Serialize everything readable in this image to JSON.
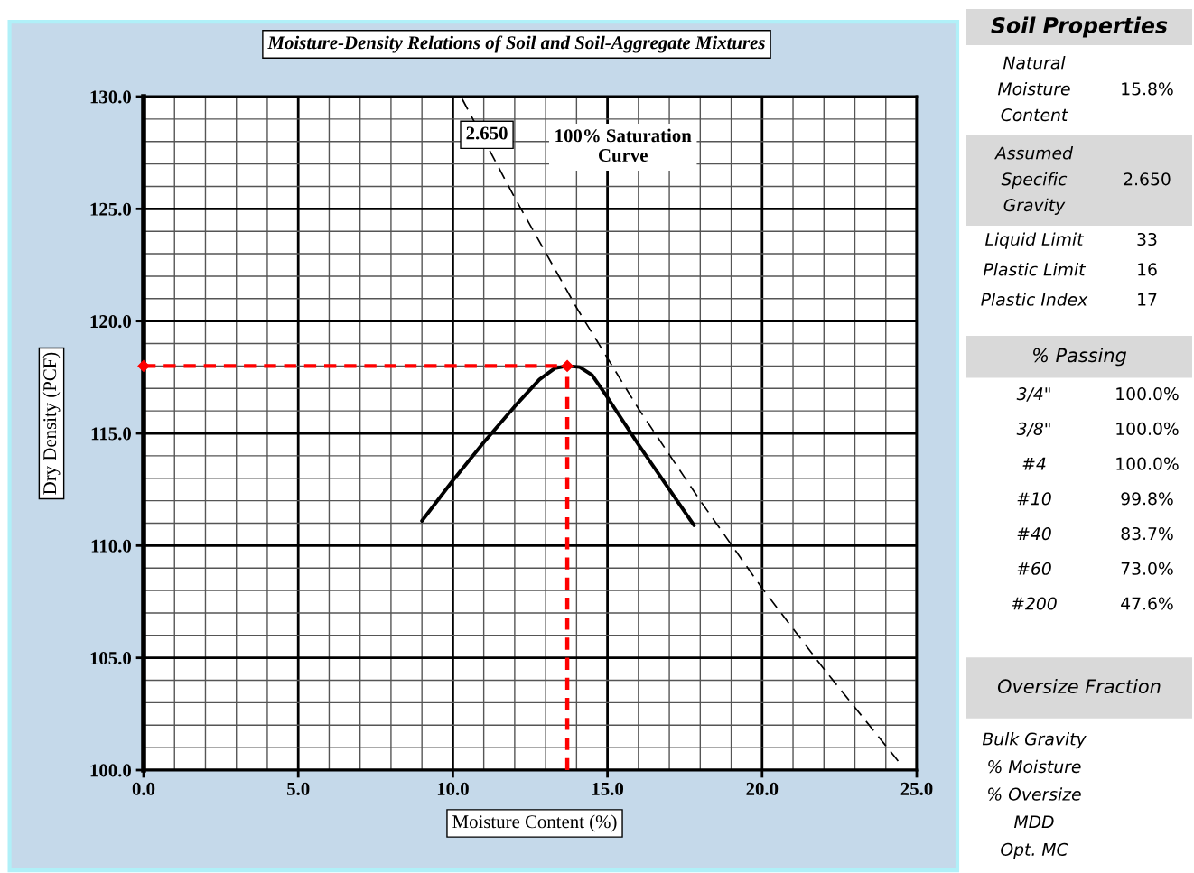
{
  "chart_data": [
    {
      "type": "line",
      "title": "Moisture-Density Relations of Soil and Soil-Aggregate Mixtures",
      "xlabel": "Moisture Content (%)",
      "ylabel": "Dry Density (PCF)",
      "xlim": [
        0,
        25
      ],
      "ylim": [
        100,
        130
      ],
      "xticks": [
        {
          "value": 0,
          "label": "0.0"
        },
        {
          "value": 5,
          "label": "5.0"
        },
        {
          "value": 10,
          "label": "10.0"
        },
        {
          "value": 15,
          "label": "15.0"
        },
        {
          "value": 20,
          "label": "20.0"
        },
        {
          "value": 25,
          "label": "25.0"
        }
      ],
      "yticks": [
        {
          "value": 100,
          "label": "100.0"
        },
        {
          "value": 105,
          "label": "105.0"
        },
        {
          "value": 110,
          "label": "110.0"
        },
        {
          "value": 115,
          "label": "115.0"
        },
        {
          "value": 120,
          "label": "120.0"
        },
        {
          "value": 125,
          "label": "125.0"
        },
        {
          "value": 130,
          "label": "130.0"
        }
      ],
      "grid": true,
      "series": [
        {
          "color": "#000000",
          "line_style": "solid",
          "marker": "none",
          "x": [
            9.0,
            10.0,
            11.0,
            12.0,
            12.8,
            13.3,
            13.7,
            14.1,
            14.5,
            15.0,
            16.0,
            17.0,
            17.8
          ],
          "values": [
            111.1,
            112.9,
            114.6,
            116.2,
            117.4,
            117.9,
            118.0,
            117.95,
            117.6,
            116.6,
            114.5,
            112.5,
            110.9
          ]
        },
        {
          "color": "#000000",
          "line_style": "dashed",
          "marker": "none",
          "x": [
            10.3,
            12.0,
            14.0,
            16.0,
            18.0,
            20.0,
            22.0,
            24.4
          ],
          "values": [
            129.9,
            125.5,
            120.6,
            116.1,
            112.0,
            108.1,
            104.5,
            100.4
          ]
        },
        {
          "color": "#ff0000",
          "line_style": "dashed",
          "marker": "diamond",
          "x": [
            0,
            13.7
          ],
          "values": [
            118.0,
            118.0
          ]
        },
        {
          "color": "#ff0000",
          "line_style": "dashed",
          "marker": "none",
          "x": [
            13.7,
            13.7
          ],
          "values": [
            100.0,
            118.0
          ]
        }
      ],
      "annotations": [
        {
          "text": "2.650",
          "x": 11.1,
          "y": 128.3
        },
        "100% Saturation\nCurve"
      ]
    },
    {
      "type": "other",
      "title": "Soil Properties",
      "categories": [
        "Natural Moisture Content",
        "Assumed Specific Gravity",
        "Liquid Limit",
        "Plastic Limit",
        "Plastic Index"
      ],
      "value_labels": [
        "15.8%",
        "2.650",
        "33",
        "16",
        "17"
      ]
    },
    {
      "type": "other",
      "title": "% Passing",
      "categories": [
        "3/4\"",
        "3/8\"",
        "#4",
        "#10",
        "#40",
        "#60",
        "#200"
      ],
      "value_labels": [
        "100.0%",
        "100.0%",
        "100.0%",
        "99.8%",
        "83.7%",
        "73.0%",
        "47.6%"
      ]
    },
    {
      "type": "other",
      "title": "Oversize Fraction",
      "categories": [
        "Bulk Gravity",
        "% Moisture",
        "% Oversize",
        "MDD",
        "Opt. MC"
      ],
      "value_labels": [
        null,
        null,
        null,
        null,
        null
      ]
    }
  ]
}
